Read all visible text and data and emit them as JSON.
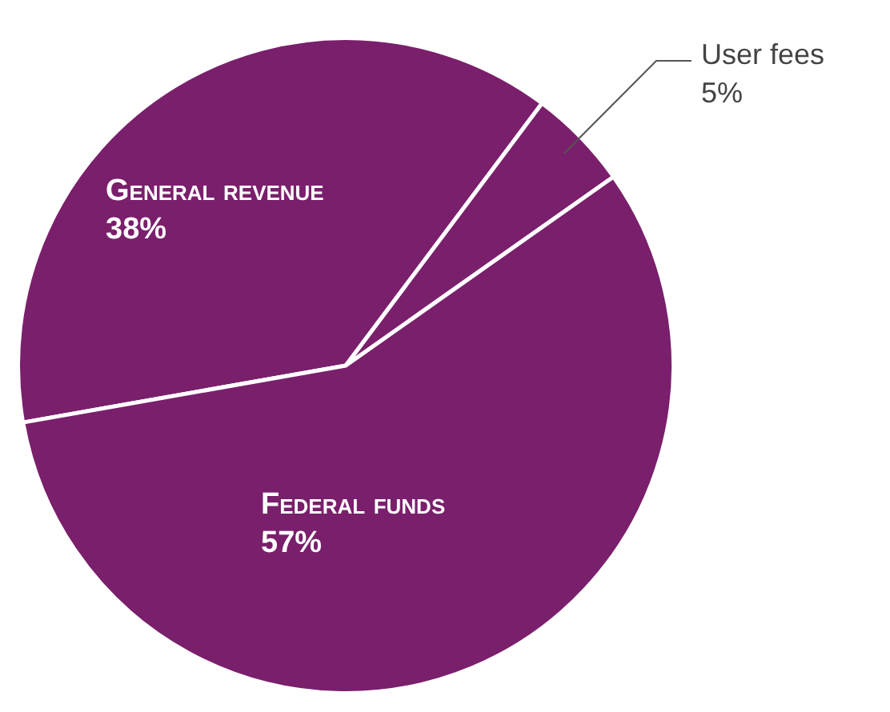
{
  "chart_data": {
    "type": "pie",
    "categories": [
      "General revenue",
      "User fees",
      "Federal funds"
    ],
    "values": [
      38,
      5,
      57
    ],
    "colors": [
      "#7a1f6c",
      "#7a1f6c",
      "#7a1f6c"
    ],
    "value_labels": [
      "38%",
      "5%",
      "57%"
    ],
    "legend": false
  }
}
